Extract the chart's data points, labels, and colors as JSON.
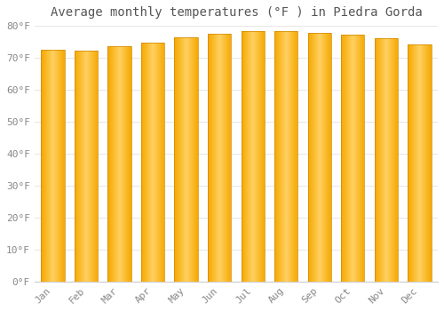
{
  "title": "Average monthly temperatures (°F ) in Piedra Gorda",
  "months": [
    "Jan",
    "Feb",
    "Mar",
    "Apr",
    "May",
    "Jun",
    "Jul",
    "Aug",
    "Sep",
    "Oct",
    "Nov",
    "Dec"
  ],
  "values": [
    72.5,
    72.3,
    73.5,
    74.7,
    76.3,
    77.5,
    78.3,
    78.3,
    77.9,
    77.3,
    76.1,
    74.3
  ],
  "bar_color_center": "#FFD060",
  "bar_color_edge": "#F5A800",
  "bar_outline": "#CC8800",
  "background_color": "#FFFFFF",
  "grid_color": "#E8E8E8",
  "ylim": [
    0,
    80
  ],
  "yticks": [
    0,
    10,
    20,
    30,
    40,
    50,
    60,
    70,
    80
  ],
  "ytick_labels": [
    "0°F",
    "10°F",
    "20°F",
    "30°F",
    "40°F",
    "50°F",
    "60°F",
    "70°F",
    "80°F"
  ],
  "title_fontsize": 10,
  "tick_fontsize": 8,
  "tick_color": "#888888",
  "bar_width": 0.7
}
